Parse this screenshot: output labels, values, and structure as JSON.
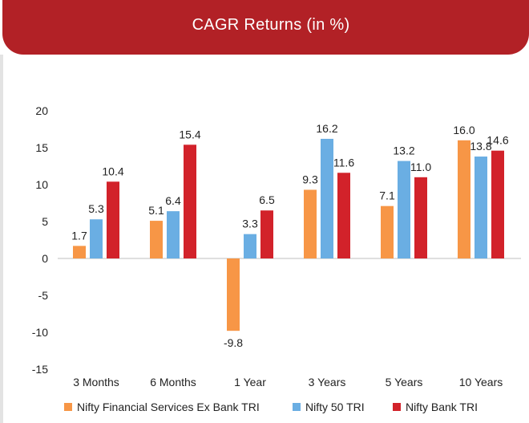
{
  "chart_data": {
    "type": "bar",
    "title": "CAGR Returns (in %)",
    "categories": [
      "3 Months",
      "6 Months",
      "1 Year",
      "3 Years",
      "5 Years",
      "10 Years"
    ],
    "series": [
      {
        "name": "Nifty Financial Services Ex Bank TRI",
        "color": "#f79646",
        "values": [
          1.7,
          5.1,
          -9.8,
          9.3,
          7.1,
          16.0
        ]
      },
      {
        "name": "Nifty 50 TRI",
        "color": "#6aaee3",
        "values": [
          5.3,
          6.4,
          3.3,
          16.2,
          13.2,
          13.8
        ]
      },
      {
        "name": "Nifty Bank TRI",
        "color": "#d2222a",
        "values": [
          10.4,
          15.4,
          6.5,
          11.6,
          11.0,
          14.6
        ]
      }
    ],
    "data_labels": [
      [
        "1.7",
        "5.1",
        "-9.8",
        "9.3",
        "7.1",
        "16.0"
      ],
      [
        "5.3",
        "6.4",
        "3.3",
        "16.2",
        "13.2",
        "13.8"
      ],
      [
        "10.4",
        "15.4",
        "6.5",
        "11.6",
        "11.0",
        "14.6"
      ]
    ],
    "ylim": [
      -15,
      20
    ],
    "yticks": [
      "20",
      "15",
      "10",
      "5",
      "0",
      "-5",
      "-10",
      "-15"
    ],
    "grid": false,
    "legend": "bottom"
  }
}
